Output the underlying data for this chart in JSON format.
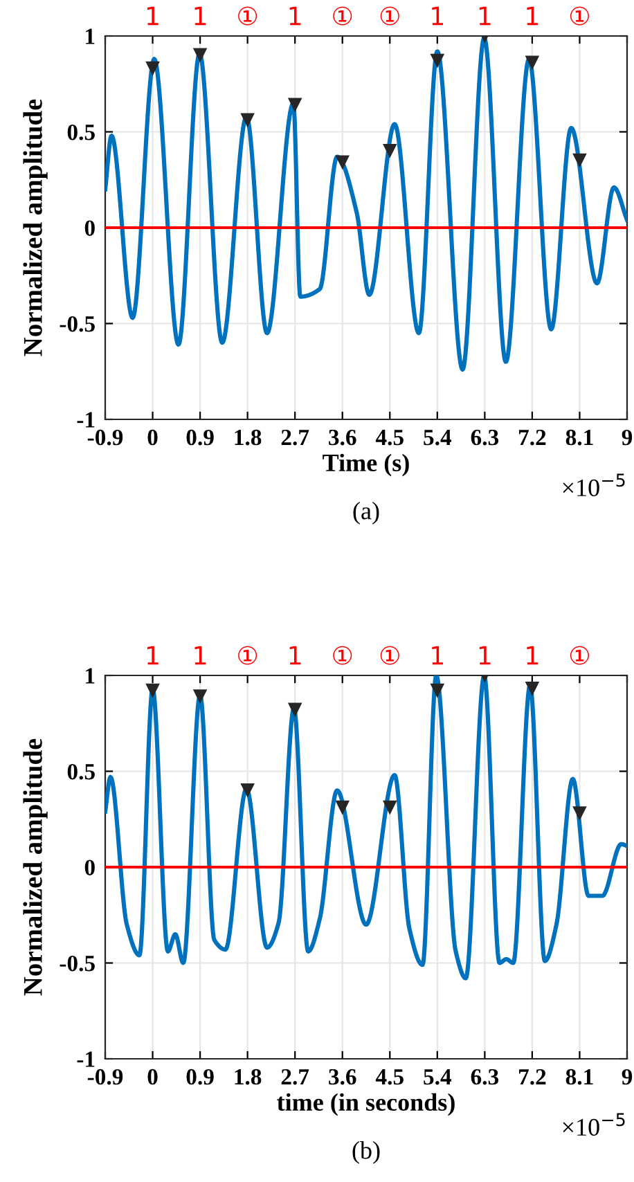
{
  "chart_data": [
    {
      "type": "line",
      "xlabel": "Time (s)",
      "ylabel": "Normalized amplitude",
      "xlim": [
        -0.9,
        9
      ],
      "ylim": [
        -1,
        1
      ],
      "xticks": [
        -0.9,
        0,
        0.9,
        1.8,
        2.7,
        3.6,
        4.5,
        5.4,
        6.3,
        7.2,
        8.1,
        9
      ],
      "yticks": [
        -1,
        -0.5,
        0,
        0.5,
        1
      ],
      "grid": true,
      "line_style": "solid",
      "ref_lines": [
        {
          "axis": "y",
          "value": 0,
          "color": "#ff0000"
        }
      ],
      "series": [
        {
          "color": "#0072bd",
          "x": [
            -0.9,
            -0.78,
            -0.38,
            0.03,
            0.49,
            0.89,
            1.32,
            1.78,
            2.17,
            2.67,
            2.8,
            3.17,
            3.5,
            3.87,
            4.11,
            4.59,
            5.05,
            5.4,
            5.88,
            6.29,
            6.7,
            7.14,
            7.56,
            7.94,
            8.43,
            8.75,
            9
          ],
          "values": [
            0.2,
            0.48,
            -0.47,
            0.88,
            -0.61,
            0.91,
            -0.6,
            0.58,
            -0.55,
            0.65,
            -0.36,
            -0.32,
            0.37,
            0.08,
            -0.35,
            0.54,
            -0.55,
            0.92,
            -0.74,
            0.99,
            -0.7,
            0.88,
            -0.53,
            0.52,
            -0.29,
            0.21,
            0.04
          ]
        },
        {
          "type": "scatter",
          "marker": "triangle",
          "color": "#262626",
          "x": [
            0,
            0.9,
            1.8,
            2.7,
            3.6,
            4.5,
            5.4,
            6.3,
            7.2,
            8.1
          ],
          "values": [
            0.83,
            0.9,
            0.56,
            0.64,
            0.34,
            0.4,
            0.87,
            1.0,
            0.86,
            0.35
          ]
        }
      ],
      "annotations": [
        "1",
        "1",
        "①",
        "1",
        "①",
        "①",
        "1",
        "1",
        "1",
        "①",
        "×10$^{−5}$",
        "(a)"
      ]
    },
    {
      "type": "line",
      "xlabel": "time (in seconds)",
      "ylabel": "Normalized amplitude",
      "xlim": [
        -0.9,
        9
      ],
      "ylim": [
        -1,
        1
      ],
      "xticks": [
        -0.9,
        0,
        0.9,
        1.8,
        2.7,
        3.6,
        4.5,
        5.4,
        6.3,
        7.2,
        8.1,
        9
      ],
      "yticks": [
        -1,
        -0.5,
        0,
        0.5,
        1
      ],
      "grid": true,
      "line_style": "solid",
      "ref_lines": [
        {
          "axis": "y",
          "value": 0,
          "color": "#ff0000"
        }
      ],
      "series": [
        {
          "color": "#0072bd",
          "x": [
            -0.9,
            -0.8,
            -0.49,
            -0.25,
            0.0,
            0.29,
            0.43,
            0.58,
            0.9,
            1.17,
            1.38,
            1.78,
            2.17,
            2.39,
            2.68,
            2.95,
            3.17,
            3.5,
            4.05,
            4.59,
            4.87,
            5.12,
            5.38,
            5.75,
            5.94,
            6.29,
            6.58,
            6.71,
            6.84,
            7.16,
            7.44,
            7.66,
            7.97,
            8.27,
            8.53,
            8.89,
            9
          ],
          "values": [
            0.29,
            0.47,
            -0.3,
            -0.46,
            0.93,
            -0.44,
            -0.35,
            -0.5,
            0.9,
            -0.38,
            -0.43,
            0.41,
            -0.42,
            -0.29,
            0.83,
            -0.44,
            -0.27,
            0.4,
            -0.3,
            0.48,
            -0.32,
            -0.51,
            1.0,
            -0.44,
            -0.58,
            1.0,
            -0.5,
            -0.48,
            -0.5,
            0.95,
            -0.49,
            -0.3,
            0.46,
            -0.15,
            -0.15,
            0.12,
            0.11
          ]
        },
        {
          "type": "scatter",
          "marker": "triangle",
          "color": "#262626",
          "x": [
            0,
            0.9,
            1.8,
            2.7,
            3.6,
            4.5,
            5.4,
            6.3,
            7.2,
            8.1
          ],
          "values": [
            0.92,
            0.89,
            0.4,
            0.82,
            0.31,
            0.31,
            0.92,
            1.0,
            0.93,
            0.28
          ]
        }
      ],
      "annotations": [
        "1",
        "1",
        "①",
        "1",
        "①",
        "①",
        "1",
        "1",
        "1",
        "①",
        "×10$^{−5}$",
        "(b)"
      ]
    }
  ]
}
